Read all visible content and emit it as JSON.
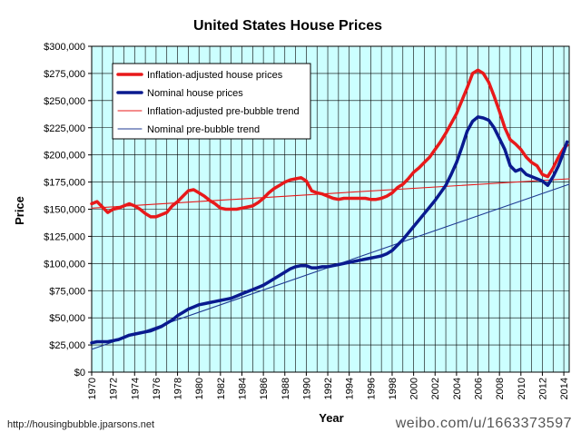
{
  "chart_data": {
    "type": "line",
    "title": "United States House Prices",
    "xlabel": "Year",
    "ylabel": "Price",
    "xlim": [
      1970,
      2014.5
    ],
    "ylim": [
      0,
      300000
    ],
    "x_ticks": [
      "1970",
      "1972",
      "1974",
      "1976",
      "1978",
      "1980",
      "1982",
      "1984",
      "1986",
      "1988",
      "1990",
      "1992",
      "1994",
      "1996",
      "1998",
      "2000",
      "2002",
      "2004",
      "2006",
      "2008",
      "2010",
      "2012",
      "2014"
    ],
    "y_ticks": [
      "$0",
      "$25,000",
      "$50,000",
      "$75,000",
      "$100,000",
      "$125,000",
      "$150,000",
      "$175,000",
      "$200,000",
      "$225,000",
      "$250,000",
      "$275,000",
      "$300,000"
    ],
    "grid": true,
    "legend_position": "top-left",
    "plot_background": "#ccffff",
    "series": [
      {
        "name": "Inflation-adjusted house prices",
        "color": "#e8191a",
        "line": "thick",
        "x": [
          1970,
          1970.5,
          1971,
          1971.5,
          1972,
          1972.5,
          1973,
          1973.5,
          1974,
          1974.5,
          1975,
          1975.5,
          1976,
          1976.5,
          1977,
          1977.5,
          1978,
          1978.5,
          1979,
          1979.5,
          1980,
          1980.5,
          1981,
          1981.5,
          1982,
          1982.5,
          1983,
          1983.5,
          1984,
          1984.5,
          1985,
          1985.5,
          1986,
          1986.5,
          1987,
          1987.5,
          1988,
          1988.5,
          1989,
          1989.5,
          1990,
          1990.5,
          1991,
          1991.5,
          1992,
          1992.5,
          1993,
          1993.5,
          1994,
          1994.5,
          1995,
          1995.5,
          1996,
          1996.5,
          1997,
          1997.5,
          1998,
          1998.5,
          1999,
          1999.5,
          2000,
          2000.5,
          2001,
          2001.5,
          2002,
          2002.5,
          2003,
          2003.5,
          2004,
          2004.5,
          2005,
          2005.5,
          2006,
          2006.5,
          2007,
          2007.5,
          2008,
          2008.5,
          2009,
          2009.5,
          2010,
          2010.5,
          2011,
          2011.5,
          2012,
          2012.5,
          2013,
          2013.5,
          2014,
          2014.3
        ],
        "y": [
          155000,
          157000,
          152000,
          147000,
          150000,
          151000,
          153000,
          155000,
          153000,
          150000,
          146000,
          143000,
          143000,
          145000,
          147000,
          153000,
          157000,
          162000,
          167000,
          168000,
          165000,
          162000,
          158000,
          155000,
          151000,
          150000,
          150000,
          150000,
          151000,
          152000,
          153000,
          156000,
          160000,
          165000,
          169000,
          172000,
          175000,
          177000,
          178000,
          179000,
          176000,
          167000,
          165000,
          164000,
          162000,
          160000,
          159000,
          160000,
          160000,
          160000,
          160000,
          160000,
          159000,
          159000,
          160000,
          162000,
          165000,
          170000,
          173000,
          178000,
          184000,
          188000,
          193000,
          198000,
          205000,
          212000,
          220000,
          229000,
          238000,
          250000,
          262000,
          275000,
          278000,
          275000,
          267000,
          254000,
          240000,
          225000,
          214000,
          210000,
          205000,
          198000,
          193000,
          190000,
          182000,
          180000,
          188000,
          198000,
          206000,
          209000
        ]
      },
      {
        "name": "Nominal house prices",
        "color": "#0a1a8f",
        "line": "thick",
        "x": [
          1970,
          1970.5,
          1971,
          1971.5,
          1972,
          1972.5,
          1973,
          1973.5,
          1974,
          1974.5,
          1975,
          1975.5,
          1976,
          1976.5,
          1977,
          1977.5,
          1978,
          1978.5,
          1979,
          1979.5,
          1980,
          1980.5,
          1981,
          1981.5,
          1982,
          1982.5,
          1983,
          1983.5,
          1984,
          1984.5,
          1985,
          1985.5,
          1986,
          1986.5,
          1987,
          1987.5,
          1988,
          1988.5,
          1989,
          1989.5,
          1990,
          1990.5,
          1991,
          1991.5,
          1992,
          1992.5,
          1993,
          1993.5,
          1994,
          1994.5,
          1995,
          1995.5,
          1996,
          1996.5,
          1997,
          1997.5,
          1998,
          1998.5,
          1999,
          1999.5,
          2000,
          2000.5,
          2001,
          2001.5,
          2002,
          2002.5,
          2003,
          2003.5,
          2004,
          2004.5,
          2005,
          2005.5,
          2006,
          2006.5,
          2007,
          2007.5,
          2008,
          2008.5,
          2009,
          2009.5,
          2010,
          2010.5,
          2011,
          2011.5,
          2012,
          2012.5,
          2013,
          2013.5,
          2014,
          2014.3
        ],
        "y": [
          27000,
          28000,
          28000,
          28000,
          29000,
          30000,
          32000,
          34000,
          35000,
          36000,
          37000,
          38000,
          40000,
          42000,
          45000,
          48000,
          52000,
          55000,
          58000,
          60000,
          62000,
          63000,
          64000,
          65000,
          66000,
          67000,
          68000,
          70000,
          72000,
          74000,
          76000,
          78000,
          80000,
          83000,
          86000,
          89000,
          92000,
          95000,
          97000,
          98000,
          98000,
          96000,
          96000,
          97000,
          97000,
          98000,
          99000,
          100000,
          101000,
          102000,
          103000,
          104000,
          105000,
          106000,
          107000,
          109000,
          112000,
          117000,
          122000,
          128000,
          134000,
          140000,
          146000,
          152000,
          158000,
          165000,
          172000,
          182000,
          193000,
          207000,
          222000,
          231000,
          235000,
          234000,
          232000,
          225000,
          215000,
          205000,
          190000,
          185000,
          187000,
          182000,
          180000,
          178000,
          176000,
          172000,
          180000,
          190000,
          203000,
          212000
        ]
      },
      {
        "name": "Inflation-adjusted pre-bubble trend",
        "color": "#e8191a",
        "line": "thin",
        "x": [
          1970,
          2014.5
        ],
        "y": [
          151000,
          178000
        ]
      },
      {
        "name": "Nominal pre-bubble trend",
        "color": "#1f3a93",
        "line": "thin",
        "x": [
          1970,
          2014.5
        ],
        "y": [
          21000,
          173000
        ]
      }
    ]
  },
  "credits": {
    "source": "http://housingbubble.jparsons.net",
    "watermark": "weibo.com/u/1663373597"
  }
}
